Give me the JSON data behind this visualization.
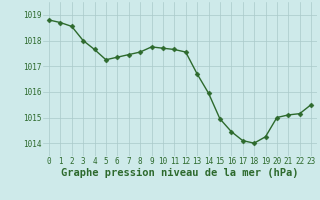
{
  "x": [
    0,
    1,
    2,
    3,
    4,
    5,
    6,
    7,
    8,
    9,
    10,
    11,
    12,
    13,
    14,
    15,
    16,
    17,
    18,
    19,
    20,
    21,
    22,
    23
  ],
  "y": [
    1018.8,
    1018.7,
    1018.55,
    1018.0,
    1017.65,
    1017.25,
    1017.35,
    1017.45,
    1017.55,
    1017.75,
    1017.7,
    1017.65,
    1017.55,
    1016.7,
    1015.95,
    1014.95,
    1014.45,
    1014.1,
    1014.0,
    1014.25,
    1015.0,
    1015.1,
    1015.15,
    1015.5
  ],
  "ylim": [
    1013.5,
    1019.5
  ],
  "xlim": [
    -0.5,
    23.5
  ],
  "yticks": [
    1014,
    1015,
    1016,
    1017,
    1018,
    1019
  ],
  "xticks": [
    0,
    1,
    2,
    3,
    4,
    5,
    6,
    7,
    8,
    9,
    10,
    11,
    12,
    13,
    14,
    15,
    16,
    17,
    18,
    19,
    20,
    21,
    22,
    23
  ],
  "line_color": "#2d6a2d",
  "marker_color": "#2d6a2d",
  "bg_color": "#ceeaea",
  "grid_color": "#aacaca",
  "xlabel": "Graphe pression niveau de la mer (hPa)",
  "xlabel_color": "#2d6a2d",
  "tick_color": "#2d6a2d",
  "tick_fontsize": 5.5,
  "xlabel_fontsize": 7.5,
  "marker_size": 2.5,
  "line_width": 1.0
}
